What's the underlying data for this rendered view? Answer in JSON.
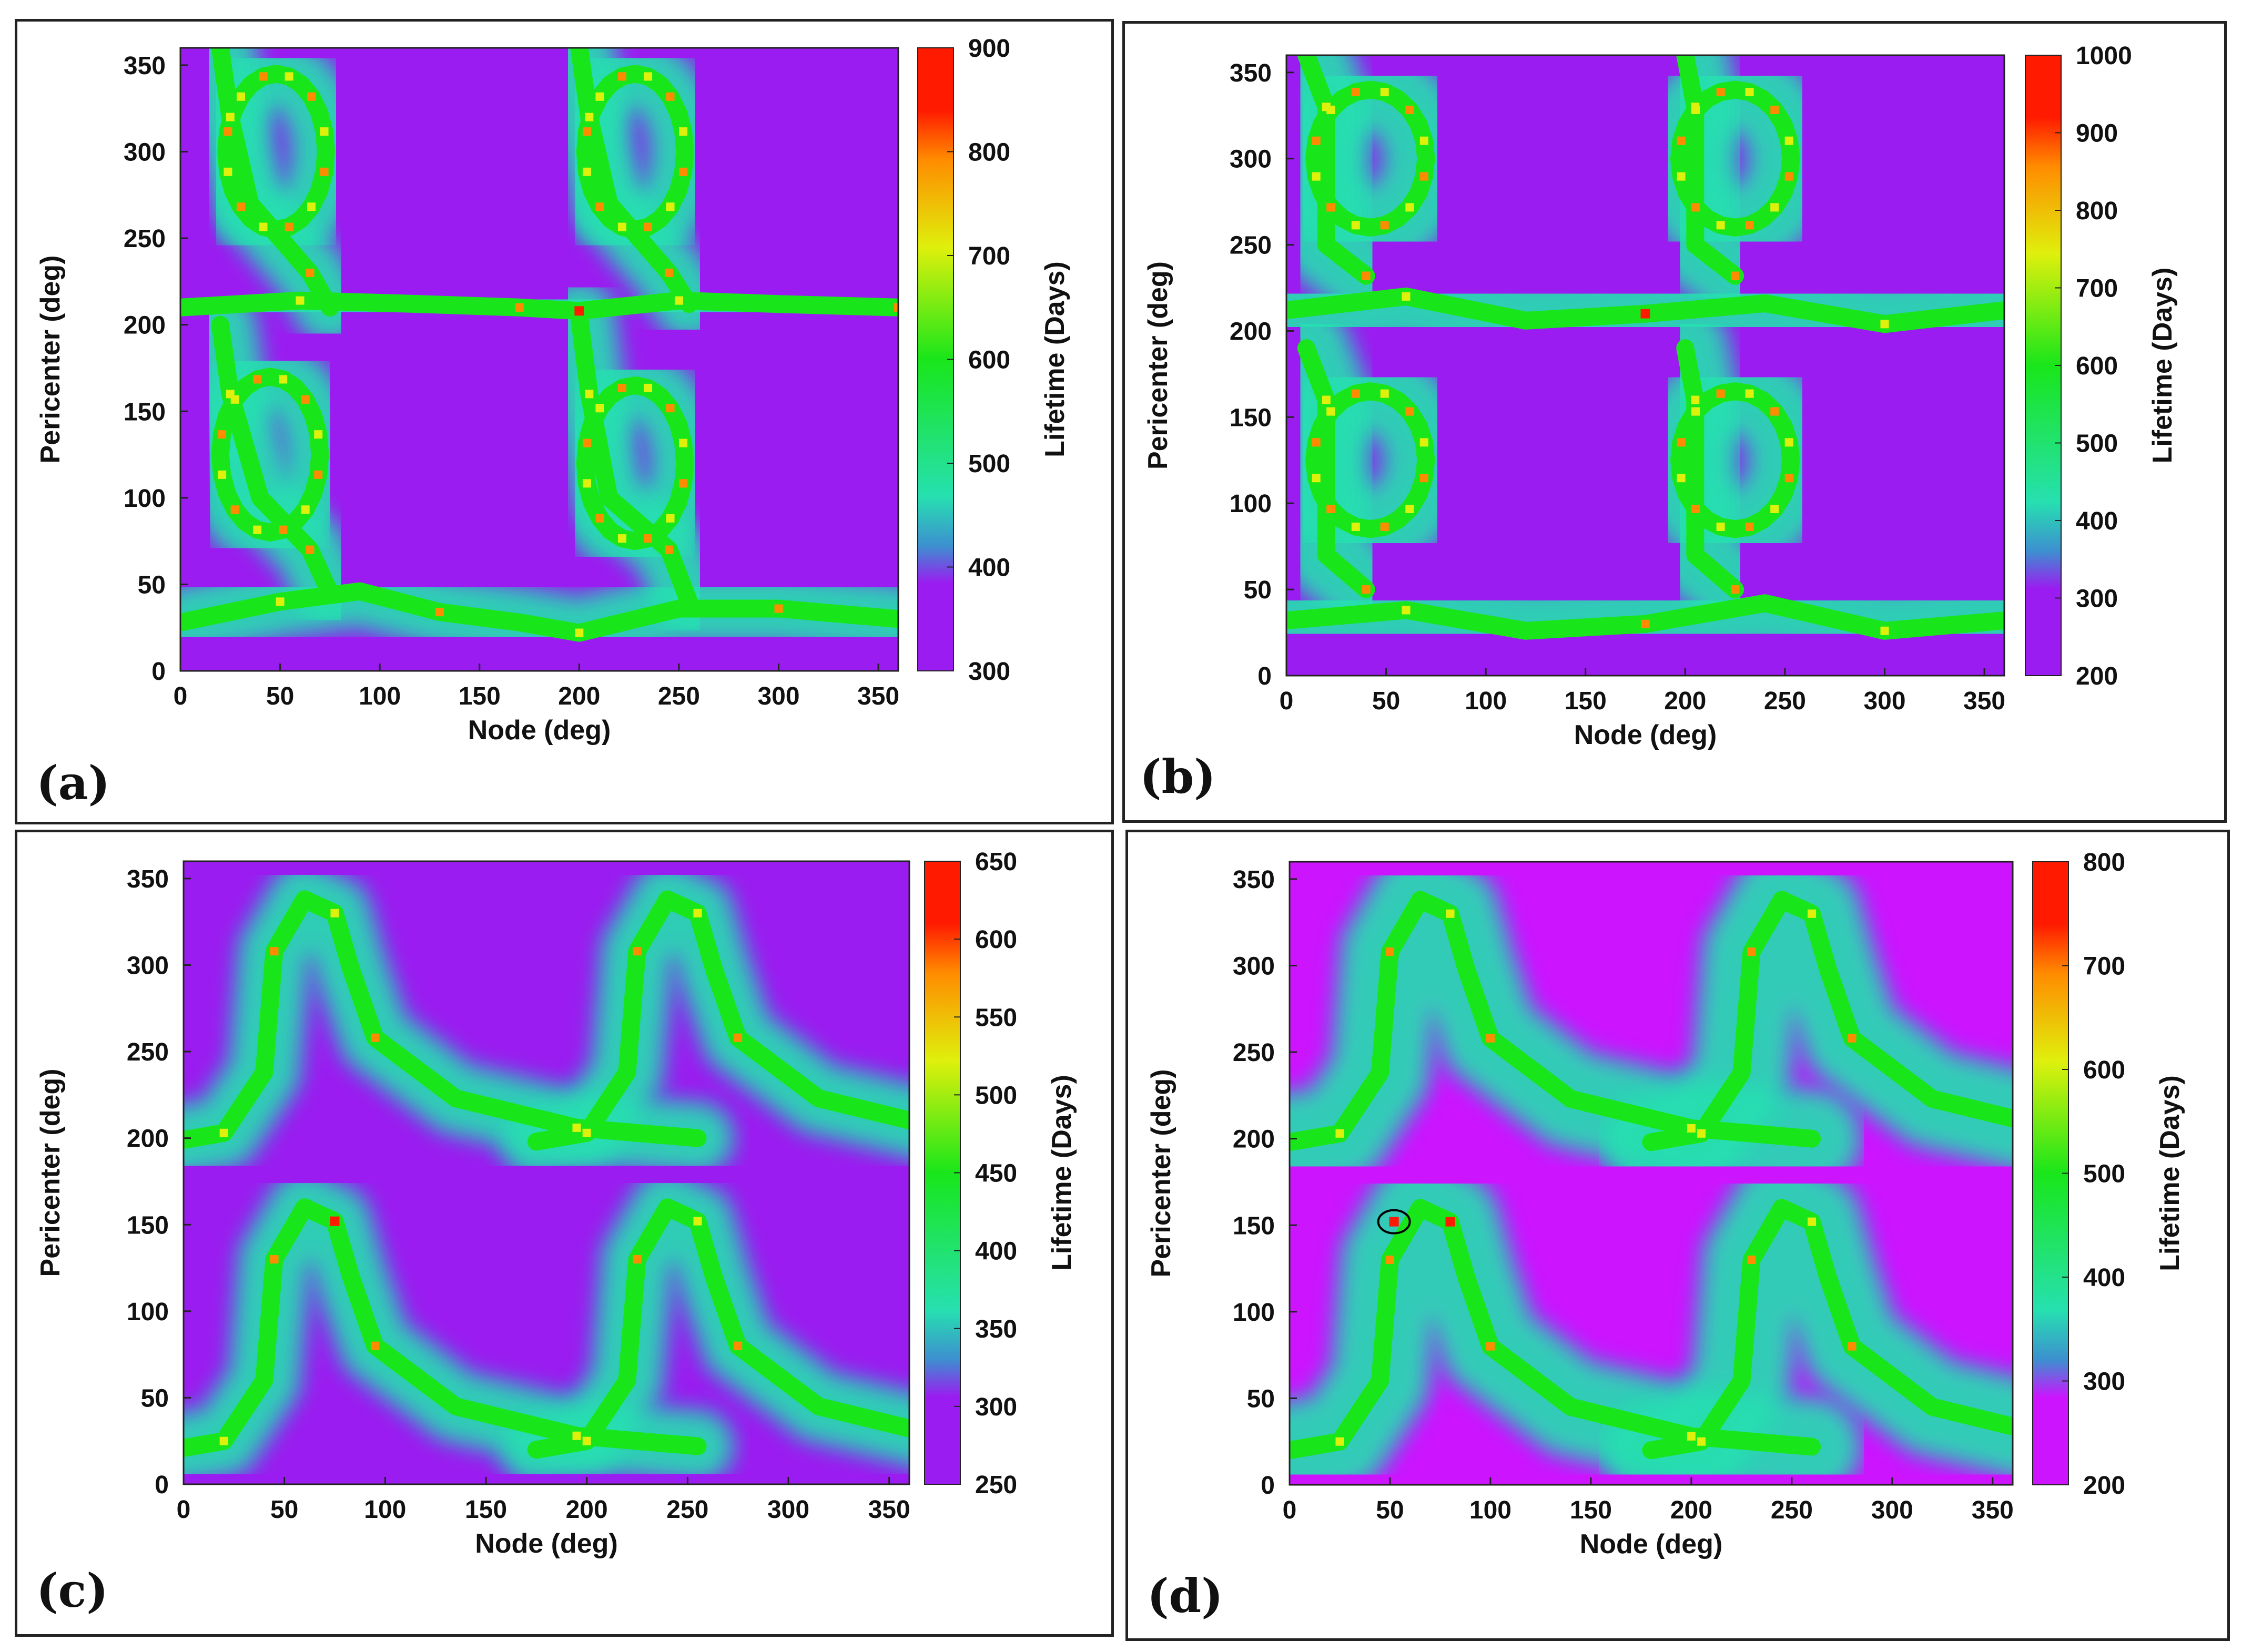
{
  "colors": {
    "low": "#9b1cf0",
    "lowblue": "#3d8fd0",
    "cyan": "#26e0b0",
    "green": "#19e61a",
    "yellow": "#dff00c",
    "orange": "#ff8c00",
    "red": "#ff1a00",
    "magenta": "#cc14ff"
  },
  "chart_data": [
    {
      "id": "a",
      "type": "heatmap",
      "panel_label": "(a)",
      "xlabel": "Node (deg)",
      "ylabel": "Pericenter (deg)",
      "colorbar_label": "Lifetime (Days)",
      "xlim": [
        0,
        360
      ],
      "ylim": [
        0,
        360
      ],
      "xticks": [
        "0",
        "50",
        "100",
        "150",
        "200",
        "250",
        "300",
        "350"
      ],
      "yticks": [
        "0",
        "50",
        "100",
        "150",
        "200",
        "250",
        "300",
        "350"
      ],
      "cbar_range": [
        300,
        900
      ],
      "cbar_ticks": [
        "300",
        "400",
        "500",
        "600",
        "700",
        "800",
        "900"
      ],
      "pattern": "loops",
      "low_color": "low"
    },
    {
      "id": "b",
      "type": "heatmap",
      "panel_label": "(b)",
      "xlabel": "Node (deg)",
      "ylabel": "Pericenter (deg)",
      "colorbar_label": "Lifetime (Days)",
      "xlim": [
        0,
        360
      ],
      "ylim": [
        0,
        360
      ],
      "xticks": [
        "0",
        "50",
        "100",
        "150",
        "200",
        "250",
        "300",
        "350"
      ],
      "yticks": [
        "0",
        "50",
        "100",
        "150",
        "200",
        "250",
        "300",
        "350"
      ],
      "cbar_range": [
        200,
        1000
      ],
      "cbar_ticks": [
        "200",
        "300",
        "400",
        "500",
        "600",
        "700",
        "800",
        "900",
        "1000"
      ],
      "pattern": "rings",
      "low_color": "low"
    },
    {
      "id": "c",
      "type": "heatmap",
      "panel_label": "(c)",
      "xlabel": "Node (deg)",
      "ylabel": "Pericenter (deg)",
      "colorbar_label": "Lifetime (Days)",
      "xlim": [
        0,
        360
      ],
      "ylim": [
        0,
        360
      ],
      "xticks": [
        "0",
        "50",
        "100",
        "150",
        "200",
        "250",
        "300",
        "350"
      ],
      "yticks": [
        "0",
        "50",
        "100",
        "150",
        "200",
        "250",
        "300",
        "350"
      ],
      "cbar_range": [
        250,
        650
      ],
      "cbar_ticks": [
        "250",
        "300",
        "350",
        "400",
        "450",
        "500",
        "550",
        "600",
        "650"
      ],
      "pattern": "arches",
      "low_color": "low"
    },
    {
      "id": "d",
      "type": "heatmap",
      "panel_label": "(d)",
      "xlabel": "Node (deg)",
      "ylabel": "Pericenter (deg)",
      "colorbar_label": "Lifetime (Days)",
      "xlim": [
        0,
        360
      ],
      "ylim": [
        0,
        360
      ],
      "xticks": [
        "0",
        "50",
        "100",
        "150",
        "200",
        "250",
        "300",
        "350"
      ],
      "yticks": [
        "0",
        "50",
        "100",
        "150",
        "200",
        "250",
        "300",
        "350"
      ],
      "cbar_range": [
        200,
        800
      ],
      "cbar_ticks": [
        "200",
        "300",
        "400",
        "500",
        "600",
        "700",
        "800"
      ],
      "pattern": "arches_wide",
      "low_color": "magenta",
      "marked_point": {
        "node": 52,
        "pericenter": 152
      }
    }
  ]
}
